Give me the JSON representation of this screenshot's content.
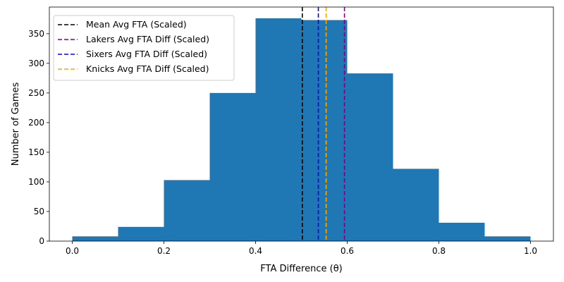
{
  "chart_data": {
    "type": "bar",
    "xlabel": "FTA Difference (θ)",
    "ylabel": "Number of Games",
    "xlim": [
      -0.05,
      1.05
    ],
    "ylim": [
      0,
      395
    ],
    "grid": false,
    "legend_position": "top-left",
    "bar_color": "#1f77b4",
    "bins": [
      {
        "x0": 0.0,
        "x1": 0.1,
        "count": 8
      },
      {
        "x0": 0.1,
        "x1": 0.2,
        "count": 24
      },
      {
        "x0": 0.2,
        "x1": 0.3,
        "count": 103
      },
      {
        "x0": 0.3,
        "x1": 0.4,
        "count": 250
      },
      {
        "x0": 0.4,
        "x1": 0.5,
        "count": 376
      },
      {
        "x0": 0.5,
        "x1": 0.6,
        "count": 373
      },
      {
        "x0": 0.6,
        "x1": 0.7,
        "count": 283
      },
      {
        "x0": 0.7,
        "x1": 0.8,
        "count": 122
      },
      {
        "x0": 0.8,
        "x1": 0.9,
        "count": 31
      },
      {
        "x0": 0.9,
        "x1": 1.0,
        "count": 8
      }
    ],
    "x_ticks": [
      {
        "value": 0.0,
        "label": "0.0"
      },
      {
        "value": 0.2,
        "label": "0.2"
      },
      {
        "value": 0.4,
        "label": "0.4"
      },
      {
        "value": 0.6,
        "label": "0.6"
      },
      {
        "value": 0.8,
        "label": "0.8"
      },
      {
        "value": 1.0,
        "label": "1.0"
      }
    ],
    "y_ticks": [
      {
        "value": 0,
        "label": "0"
      },
      {
        "value": 50,
        "label": "50"
      },
      {
        "value": 100,
        "label": "100"
      },
      {
        "value": 150,
        "label": "150"
      },
      {
        "value": 200,
        "label": "200"
      },
      {
        "value": 250,
        "label": "250"
      },
      {
        "value": 300,
        "label": "300"
      },
      {
        "value": 350,
        "label": "350"
      }
    ],
    "reference_lines": [
      {
        "name": "Mean Avg FTA (Scaled)",
        "x": 0.502,
        "color": "#000000"
      },
      {
        "name": "Lakers Avg FTA Diff (Scaled)",
        "x": 0.594,
        "color": "#800080"
      },
      {
        "name": "Sixers Avg FTA Diff (Scaled)",
        "x": 0.537,
        "color": "#0000ff"
      },
      {
        "name": "Knicks Avg FTA Diff (Scaled)",
        "x": 0.554,
        "color": "#ffa500"
      }
    ]
  }
}
